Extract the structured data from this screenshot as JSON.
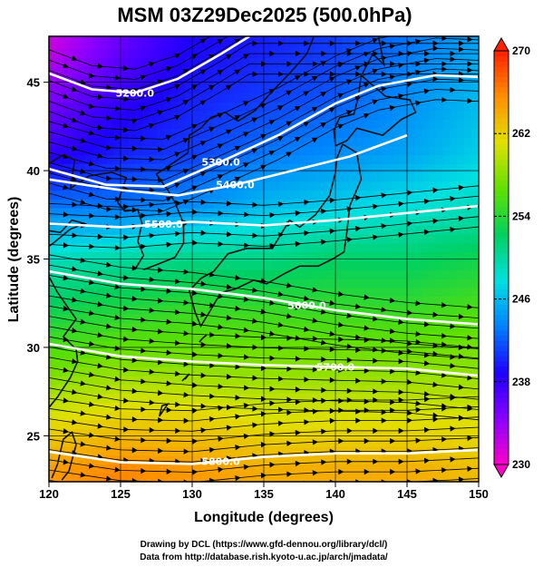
{
  "chart_data": {
    "type": "heatmap",
    "title": "MSM 03Z29Dec2025 (500.0hPa)",
    "xlabel": "Longitude (degrees)",
    "ylabel": "Latitude  (degrees)",
    "xlim": [
      120,
      150
    ],
    "ylim": [
      22.4,
      47.6
    ],
    "x_ticks": [
      "120",
      "125",
      "130",
      "135",
      "140",
      "145",
      "150"
    ],
    "y_ticks": [
      "25",
      "30",
      "35",
      "40",
      "45"
    ],
    "grid": true,
    "colorbar": {
      "min": 230,
      "max": 270,
      "ticks": [
        "230",
        "238",
        "246",
        "254",
        "262",
        "270"
      ],
      "colors": [
        "#ff00c8",
        "#8a00ff",
        "#1e00ff",
        "#0080ff",
        "#00e0e0",
        "#00d060",
        "#60e000",
        "#e0e000",
        "#ff9000",
        "#ff2000"
      ]
    },
    "temperature_field": {
      "x": [
        120,
        125,
        130,
        135,
        140,
        145,
        150
      ],
      "y": [
        47,
        44,
        41,
        38,
        35,
        32,
        29,
        26,
        23
      ],
      "values": [
        [
          232,
          236,
          239,
          240,
          241,
          243,
          245
        ],
        [
          235,
          238,
          240,
          241,
          242,
          244,
          246
        ],
        [
          238,
          240,
          241,
          243,
          244,
          245,
          247
        ],
        [
          243,
          243,
          244,
          246,
          247,
          248,
          249
        ],
        [
          249,
          250,
          251,
          251,
          252,
          252,
          253
        ],
        [
          253,
          254,
          255,
          255,
          255,
          255,
          256
        ],
        [
          257,
          258,
          258,
          258,
          258,
          258,
          258
        ],
        [
          261,
          262,
          262,
          261,
          261,
          261,
          261
        ],
        [
          265,
          266,
          265,
          264,
          264,
          264,
          263
        ]
      ]
    },
    "height_contours": [
      {
        "label": "5200.0",
        "points": [
          [
            120,
            45.5
          ],
          [
            123,
            44.6
          ],
          [
            126,
            44.4
          ],
          [
            129,
            45.2
          ],
          [
            132,
            46.6
          ],
          [
            134,
            47.6
          ]
        ]
      },
      {
        "label": "5300.0",
        "points": [
          [
            120,
            40.1
          ],
          [
            124,
            39.2
          ],
          [
            128,
            39.1
          ],
          [
            132,
            40.5
          ],
          [
            136,
            42.0
          ],
          [
            140,
            43.8
          ],
          [
            143,
            44.8
          ],
          [
            147,
            45.4
          ],
          [
            150,
            45.3
          ]
        ]
      },
      {
        "label": "5400.0",
        "points": [
          [
            120,
            39.5
          ],
          [
            125,
            38.9
          ],
          [
            129,
            38.6
          ],
          [
            133,
            39.2
          ],
          [
            137,
            40.0
          ],
          [
            141,
            40.8
          ],
          [
            145,
            42.0
          ]
        ]
      },
      {
        "label": "5500.0",
        "points": [
          [
            120,
            37.0
          ],
          [
            125,
            36.8
          ],
          [
            130,
            37.1
          ],
          [
            135,
            36.9
          ],
          [
            140,
            37.2
          ],
          [
            145,
            37.6
          ],
          [
            150,
            38.0
          ]
        ]
      },
      {
        "label": "5600.0",
        "points": [
          [
            120,
            34.3
          ],
          [
            125,
            33.6
          ],
          [
            130,
            33.3
          ],
          [
            135,
            32.8
          ],
          [
            140,
            32.1
          ],
          [
            145,
            31.6
          ],
          [
            150,
            31.3
          ]
        ]
      },
      {
        "label": "5700.0",
        "points": [
          [
            120,
            30.2
          ],
          [
            125,
            29.5
          ],
          [
            130,
            29.2
          ],
          [
            135,
            29.0
          ],
          [
            140,
            28.9
          ],
          [
            145,
            28.8
          ],
          [
            150,
            28.4
          ]
        ]
      },
      {
        "label": "5800.0",
        "points": [
          [
            120,
            24.1
          ],
          [
            125,
            23.5
          ],
          [
            130,
            23.4
          ],
          [
            135,
            23.8
          ],
          [
            140,
            24.0
          ],
          [
            145,
            24.0
          ],
          [
            150,
            24.2
          ]
        ]
      }
    ]
  },
  "credits": {
    "line1": "Drawing by DCL (https://www.gfd-dennou.org/library/dcl/)",
    "line2": "Data from http://database.rish.kyoto-u.ac.jp/arch/jmadata/"
  }
}
